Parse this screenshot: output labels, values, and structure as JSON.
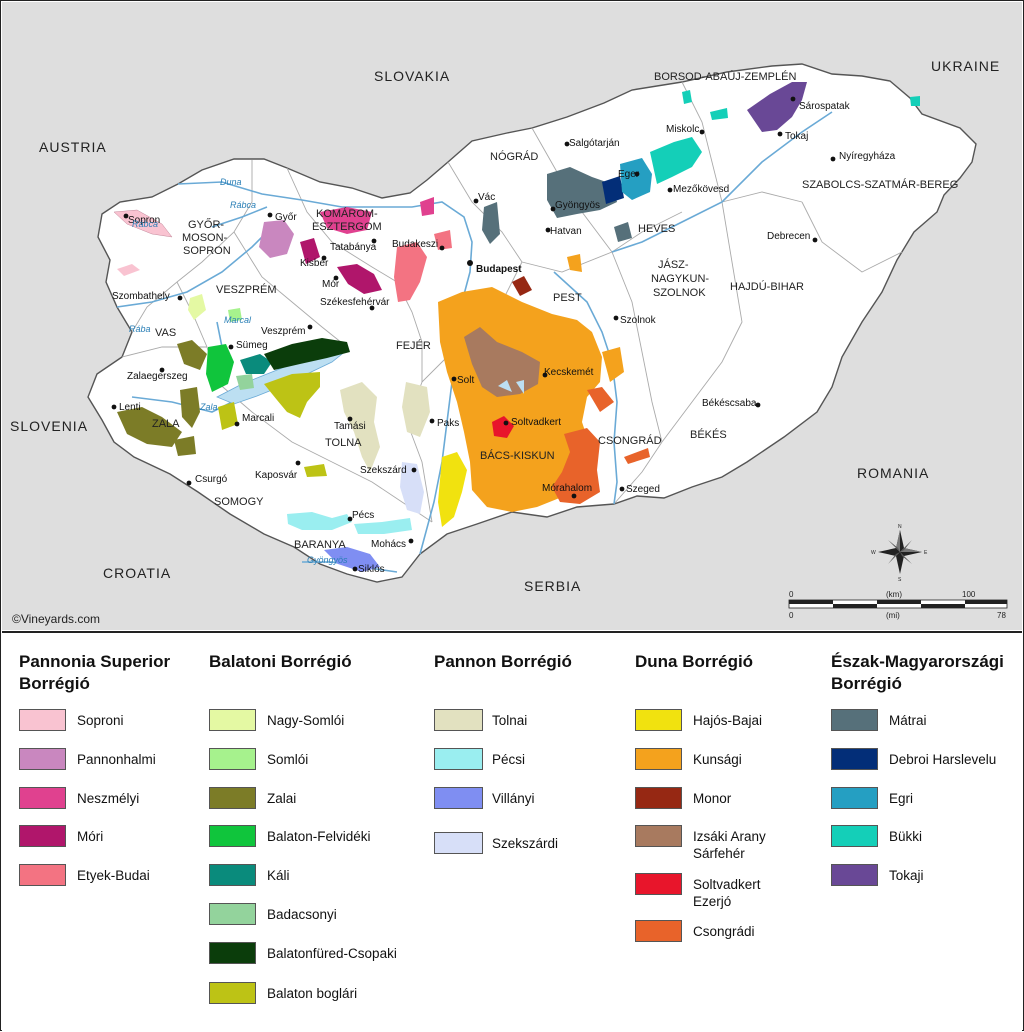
{
  "countries": {
    "slovakia": "SLOVAKIA",
    "ukraine": "UKRAINE",
    "austria": "AUSTRIA",
    "slovenia": "SLOVENIA",
    "croatia": "CROATIA",
    "serbia": "SERBIA",
    "romania": "ROMANIA"
  },
  "counties": {
    "borsod": "BORSOD-ABAÚJ-ZEMPLÉN",
    "nograd": "NÓGRÁD",
    "heves": "HEVES",
    "szabolcs": "SZABOLCS-SZATMÁR-BEREG",
    "gyor_1": "GYŐR-",
    "gyor_2": "MOSON-",
    "gyor_3": "SOPRON",
    "komarom_1": "KOMÁROM-",
    "komarom_2": "ESZTERGOM",
    "veszprem": "VESZPRÉM",
    "vas": "VAS",
    "zala": "ZALA",
    "fejer": "FEJÉR",
    "pest": "PEST",
    "jasz_1": "JÁSZ-",
    "jasz_2": "NAGYKUN-",
    "jasz_3": "SZOLNOK",
    "hajdu": "HAJDÚ-BIHAR",
    "tolna": "TOLNA",
    "somogy": "SOMOGY",
    "baranya": "BARANYA",
    "bacs": "BÁCS-KISKUN",
    "csongrad": "CSONGRÁD",
    "bekes": "BÉKÉS"
  },
  "cities": {
    "sopron": "Sopron",
    "gyor": "Győr",
    "tatabanya": "Tatabánya",
    "kisber": "Kisbér",
    "mor": "Mór",
    "budakeszi": "Budakeszi",
    "budapest": "Budapest",
    "szekesfehervar": "Székesfehérvár",
    "szombathely": "Szombathely",
    "veszprem": "Veszprém",
    "sumeg": "Sümeg",
    "zalaegerszeg": "Zalaegerszeg",
    "lenti": "Lenti",
    "marcali": "Marcali",
    "csurgo": "Csurgó",
    "kaposvar": "Kaposvár",
    "tamasi": "Tamási",
    "paks": "Paks",
    "solt": "Solt",
    "szekszard": "Szekszárd",
    "pecs": "Pécs",
    "mohacs": "Mohács",
    "siklos": "Siklós",
    "vac": "Vác",
    "salgotarjan": "Salgótarján",
    "gyongyos": "Gyöngyös",
    "hatvan": "Hatvan",
    "eger": "Eger",
    "mezokovesd": "Mezőkövesd",
    "miskolc": "Miskolc",
    "sarospatak": "Sárospatak",
    "tokaj": "Tokaj",
    "nyiregyhaza": "Nyíregyháza",
    "debrecen": "Debrecen",
    "szolnok": "Szolnok",
    "kecskemet": "Kecskemét",
    "soltvadkert": "Soltvadkert",
    "bekescsaba": "Békéscsaba",
    "szeged": "Szeged",
    "morahalom": "Mórahalom"
  },
  "rivers": {
    "duna": "Duna",
    "robca_1": "Rábca",
    "robca_2": "Rábca",
    "raba": "Rába",
    "marcal": "Marcal",
    "zala": "Zala",
    "gyongyos": "Gyöngyös"
  },
  "copyright": "©Vineyards.com",
  "scale": {
    "km_unit": "(km)",
    "mi_unit": "(mi)",
    "zero_km": "0",
    "zero_mi": "0",
    "km_max": "100",
    "mi_max": "78"
  },
  "compass": {
    "n": "N",
    "s": "S",
    "e": "E",
    "w": "W"
  },
  "colors": {
    "map_outside": "#dedede",
    "hungary": "#ffffff",
    "border": "#555555",
    "river": "#6aaad6",
    "lake": "#bcdff2"
  },
  "legend": [
    {
      "title": "Pannonia Superior Borrégió",
      "items": [
        {
          "label": "Soproni",
          "color": "#f9c3d1"
        },
        {
          "label": "Pannonhalmi",
          "color": "#c987bf"
        },
        {
          "label": "Neszmélyi",
          "color": "#e0418f"
        },
        {
          "label": "Móri",
          "color": "#b0166b"
        },
        {
          "label": "Etyek-Budai",
          "color": "#f37382"
        }
      ]
    },
    {
      "title": "Balatoni Borrégió",
      "items": [
        {
          "label": "Nagy-Somlói",
          "color": "#e4f9a3"
        },
        {
          "label": "Somlói",
          "color": "#a6f28d"
        },
        {
          "label": "Zalai",
          "color": "#7c7c27"
        },
        {
          "label": "Balaton-Felvidéki",
          "color": "#10c53c"
        },
        {
          "label": "Káli",
          "color": "#0a8b7c"
        },
        {
          "label": "Badacsonyi",
          "color": "#93d39c"
        },
        {
          "label": "Balatonfüred-Csopaki",
          "color": "#0b3d0b"
        },
        {
          "label": "Balaton boglári",
          "color": "#bdc315"
        }
      ]
    },
    {
      "title": "Pannon Borrégió",
      "items": [
        {
          "label": "Tolnai",
          "color": "#e2e1c0"
        },
        {
          "label": "Pécsi",
          "color": "#9aeef0"
        },
        {
          "label": "Villányi",
          "color": "#7f8ef2"
        },
        {
          "label": "Szekszárdi",
          "color": "#d7dff8"
        }
      ]
    },
    {
      "title": "Duna Borrégió",
      "items": [
        {
          "label": "Hajós-Bajai",
          "color": "#f1e20f"
        },
        {
          "label": "Kunsági",
          "color": "#f4a21d"
        },
        {
          "label": "Monor",
          "color": "#962813"
        },
        {
          "label": "Izsáki Arany Sárfehér",
          "color": "#a87a5f"
        },
        {
          "label": "Soltvadkert Ezerjó",
          "color": "#e8152b"
        },
        {
          "label": "Csongrádi",
          "color": "#e8632a"
        }
      ]
    },
    {
      "title": "Észak-Magyarországi Borrégió",
      "items": [
        {
          "label": "Mátrai",
          "color": "#56707a"
        },
        {
          "label": "Debroi Harslevelu",
          "color": "#032e78"
        },
        {
          "label": "Egri",
          "color": "#259fc2"
        },
        {
          "label": "Bükki",
          "color": "#14cfb8"
        },
        {
          "label": "Tokaji",
          "color": "#694896"
        }
      ]
    }
  ]
}
